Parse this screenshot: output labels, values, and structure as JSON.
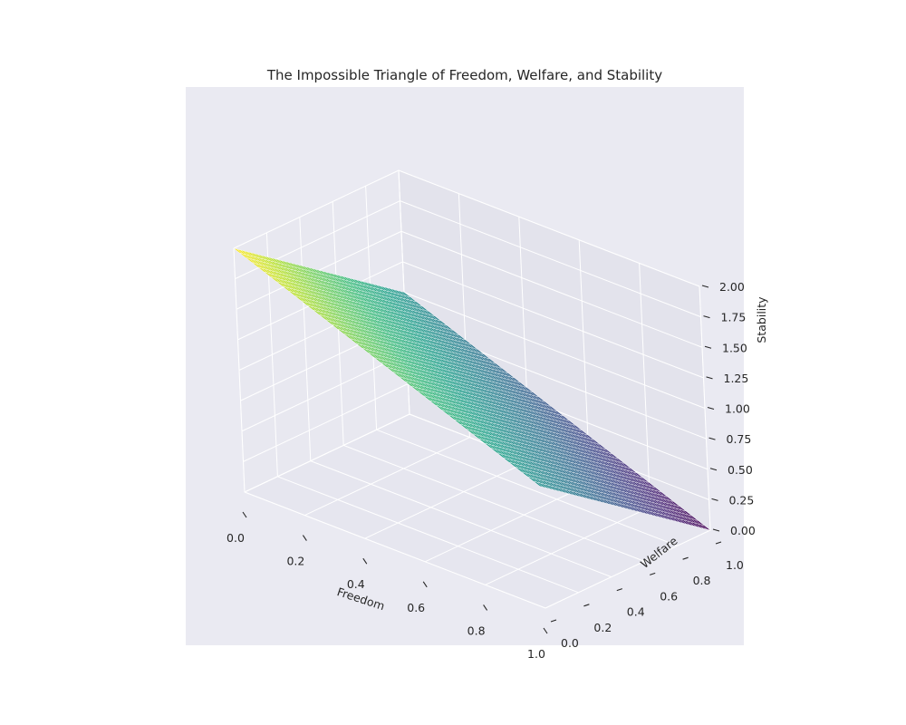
{
  "chart_data": {
    "type": "surface3d",
    "title": "The Impossible Triangle of Freedom, Welfare, and Stability",
    "xlabel": "Freedom",
    "ylabel": "Welfare",
    "zlabel": "Stability",
    "xlim": [
      0,
      1
    ],
    "ylim": [
      0,
      1
    ],
    "zlim": [
      0,
      2
    ],
    "x_ticks": [
      "0.0",
      "0.2",
      "0.4",
      "0.6",
      "0.8",
      "1.0"
    ],
    "y_ticks": [
      "0.0",
      "0.2",
      "0.4",
      "0.6",
      "0.8",
      "1.0"
    ],
    "z_ticks": [
      "0.00",
      "0.25",
      "0.50",
      "0.75",
      "1.00",
      "1.25",
      "1.50",
      "1.75",
      "2.00"
    ],
    "surface": {
      "formula": "Stability = 2 - Freedom - Welfare",
      "corners": [
        {
          "x": 0,
          "y": 0,
          "z": 2
        },
        {
          "x": 1,
          "y": 0,
          "z": 1
        },
        {
          "x": 1,
          "y": 1,
          "z": 0
        },
        {
          "x": 0,
          "y": 1,
          "z": 1
        }
      ],
      "colormap": "viridis"
    },
    "grid": true,
    "background": "#eaeaf2"
  }
}
